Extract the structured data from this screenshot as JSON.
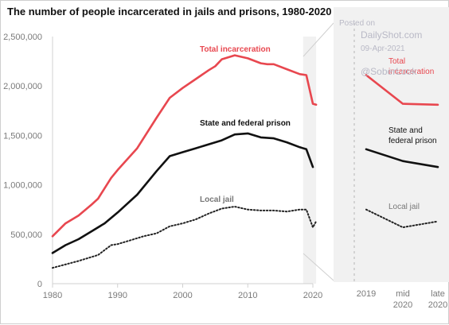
{
  "colors": {
    "total": "#e8474f",
    "state": "#111111",
    "local": "#222222",
    "shade": "#f1f1f1",
    "grid": "#d0d0d0"
  },
  "watermark": {
    "posted": "Posted on",
    "site": "DailyShot.com",
    "date": "09-Apr-2021",
    "handle": "@SoberLook"
  },
  "chart_data": [
    {
      "type": "line",
      "title": "The number of people incarcerated in jails and prisons, 1980-2020",
      "ylim": [
        0,
        2500000
      ],
      "xlim": [
        1980,
        2020
      ],
      "y_ticks": [
        "0",
        "500,000",
        "1,000,000",
        "1,500,000",
        "2,000,000",
        "2,500,000"
      ],
      "x_ticks": [
        "1980",
        "1990",
        "2000",
        "2010",
        "2020"
      ],
      "grid": false,
      "shaded_region": [
        2018.5,
        2020.5
      ],
      "series": [
        {
          "name": "Total incarceration",
          "x": [
            1980,
            1982,
            1984,
            1986,
            1987,
            1989,
            1990,
            1993,
            1996,
            1998,
            2000,
            2002,
            2004,
            2005,
            2006,
            2008,
            2010,
            2012,
            2013,
            2014,
            2016,
            2018,
            2019,
            2020,
            2020.5
          ],
          "y": [
            480000,
            610000,
            690000,
            800000,
            860000,
            1070000,
            1150000,
            1370000,
            1680000,
            1880000,
            1980000,
            2070000,
            2160000,
            2200000,
            2270000,
            2310000,
            2280000,
            2230000,
            2220000,
            2220000,
            2170000,
            2120000,
            2110000,
            1820000,
            1810000
          ]
        },
        {
          "name": "State and federal prison",
          "x": [
            1980,
            1982,
            1984,
            1986,
            1988,
            1990,
            1993,
            1996,
            1998,
            2000,
            2002,
            2004,
            2006,
            2008,
            2010,
            2012,
            2014,
            2016,
            2018,
            2019,
            2020
          ],
          "y": [
            310000,
            390000,
            450000,
            530000,
            610000,
            720000,
            900000,
            1140000,
            1290000,
            1330000,
            1370000,
            1410000,
            1450000,
            1510000,
            1520000,
            1480000,
            1470000,
            1430000,
            1380000,
            1360000,
            1180000
          ]
        },
        {
          "name": "Local jail",
          "x": [
            1980,
            1984,
            1987,
            1989,
            1990,
            1992,
            1994,
            1996,
            1998,
            2000,
            2002,
            2004,
            2006,
            2008,
            2010,
            2012,
            2014,
            2016,
            2018,
            2019,
            2020,
            2020.5
          ],
          "y": [
            160000,
            230000,
            290000,
            390000,
            400000,
            440000,
            480000,
            510000,
            580000,
            610000,
            650000,
            710000,
            760000,
            780000,
            750000,
            740000,
            740000,
            730000,
            750000,
            750000,
            570000,
            630000
          ]
        }
      ]
    },
    {
      "type": "line",
      "categories": [
        "2019",
        "mid\n2020",
        "late\n2020"
      ],
      "x_tick_lines": [
        [
          "2019"
        ],
        [
          "mid",
          "2020"
        ],
        [
          "late",
          "2020"
        ]
      ],
      "series": [
        {
          "name": "Total\nincarceration",
          "label_lines": [
            "Total",
            "incarceration"
          ],
          "values": [
            2110000,
            1820000,
            1810000
          ]
        },
        {
          "name": "State and\nfederal prison",
          "label_lines": [
            "State and",
            "federal prison"
          ],
          "values": [
            1360000,
            1240000,
            1180000
          ]
        },
        {
          "name": "Local jail",
          "label_lines": [
            "Local jail"
          ],
          "values": [
            750000,
            570000,
            630000
          ]
        }
      ]
    }
  ]
}
